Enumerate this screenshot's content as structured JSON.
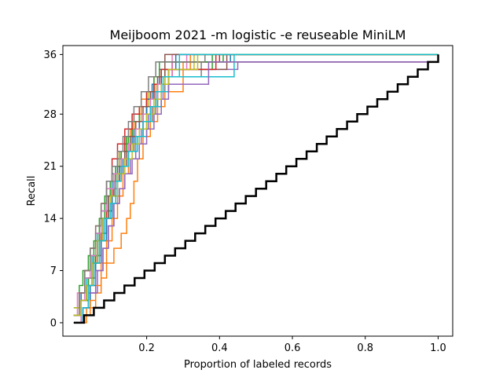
{
  "chart_data": {
    "type": "line",
    "title": "Meijboom 2021 -m logistic -e reuseable MiniLM",
    "xlabel": "Proportion of labeled records",
    "ylabel": "Recall",
    "xlim": [
      -0.03,
      1.04
    ],
    "ylim": [
      -1.8,
      37.2
    ],
    "x_ticks": [
      {
        "value": 0.2,
        "label": "0.2"
      },
      {
        "value": 0.4,
        "label": "0.4"
      },
      {
        "value": 0.6,
        "label": "0.6"
      },
      {
        "value": 0.8,
        "label": "0.8"
      },
      {
        "value": 1.0,
        "label": "1.0"
      }
    ],
    "y_ticks": [
      {
        "value": 0,
        "label": "0"
      },
      {
        "value": 7,
        "label": "7"
      },
      {
        "value": 14,
        "label": "14"
      },
      {
        "value": 21,
        "label": "21"
      },
      {
        "value": 28,
        "label": "28"
      },
      {
        "value": 36,
        "label": "36"
      }
    ],
    "grid": false,
    "total_relevant": 36,
    "random_baseline": {
      "color": "#000000",
      "x": [
        0.0,
        0.028,
        0.055,
        0.083,
        0.111,
        0.139,
        0.167,
        0.194,
        0.222,
        0.25,
        0.278,
        0.306,
        0.333,
        0.361,
        0.389,
        0.417,
        0.444,
        0.472,
        0.5,
        0.528,
        0.556,
        0.583,
        0.611,
        0.639,
        0.667,
        0.694,
        0.722,
        0.75,
        0.778,
        0.806,
        0.833,
        0.861,
        0.889,
        0.917,
        0.944,
        0.972,
        1.0
      ],
      "y": [
        0,
        1,
        2,
        3,
        4,
        5,
        6,
        7,
        8,
        9,
        10,
        11,
        12,
        13,
        14,
        15,
        16,
        17,
        18,
        19,
        20,
        21,
        22,
        23,
        24,
        25,
        26,
        27,
        28,
        29,
        30,
        31,
        32,
        33,
        34,
        35,
        36
      ]
    },
    "series": [
      {
        "color": "#1f77b4",
        "x": [
          0.0,
          0.02,
          0.03,
          0.045,
          0.06,
          0.075,
          0.09,
          0.105,
          0.12,
          0.14,
          0.16,
          0.18,
          0.2,
          0.22,
          0.25,
          0.27,
          0.43,
          1.0
        ],
        "y": [
          1,
          4,
          7,
          10,
          12,
          15,
          18,
          20,
          22,
          24,
          26,
          28,
          30,
          32,
          34,
          35,
          36,
          36
        ]
      },
      {
        "color": "#ff7f0e",
        "x": [
          0.0,
          0.035,
          0.06,
          0.075,
          0.09,
          0.11,
          0.13,
          0.145,
          0.155,
          0.165,
          0.175,
          0.19,
          0.21,
          0.23,
          0.25,
          0.3,
          1.0
        ],
        "y": [
          0,
          2,
          4,
          6,
          8,
          10,
          12,
          14,
          16,
          19,
          22,
          25,
          27,
          29,
          31,
          35,
          36
        ]
      },
      {
        "color": "#2ca02c",
        "x": [
          0.0,
          0.015,
          0.025,
          0.04,
          0.055,
          0.07,
          0.085,
          0.1,
          0.115,
          0.13,
          0.15,
          0.17,
          0.2,
          0.23,
          0.26,
          0.38,
          1.0
        ],
        "y": [
          2,
          5,
          7,
          9,
          11,
          14,
          17,
          19,
          21,
          23,
          25,
          27,
          29,
          31,
          34,
          36,
          36
        ]
      },
      {
        "color": "#d62728",
        "x": [
          0.0,
          0.02,
          0.04,
          0.06,
          0.075,
          0.09,
          0.105,
          0.115,
          0.125,
          0.14,
          0.16,
          0.18,
          0.2,
          0.22,
          0.24,
          0.27,
          0.4,
          1.0
        ],
        "y": [
          1,
          3,
          6,
          9,
          12,
          15,
          18,
          21,
          23,
          25,
          26,
          28,
          30,
          32,
          33,
          35,
          36,
          36
        ]
      },
      {
        "color": "#9467bd",
        "x": [
          0.0,
          0.025,
          0.045,
          0.065,
          0.08,
          0.095,
          0.11,
          0.125,
          0.14,
          0.155,
          0.17,
          0.185,
          0.205,
          0.225,
          0.245,
          0.26,
          0.45,
          1.0
        ],
        "y": [
          0,
          2,
          4,
          7,
          10,
          13,
          16,
          18,
          20,
          22,
          24,
          26,
          28,
          30,
          32,
          34,
          35,
          36
        ]
      },
      {
        "color": "#8c564b",
        "x": [
          0.0,
          0.02,
          0.035,
          0.05,
          0.065,
          0.08,
          0.095,
          0.11,
          0.125,
          0.145,
          0.165,
          0.19,
          0.215,
          0.24,
          0.26,
          0.42,
          1.0
        ],
        "y": [
          1,
          3,
          5,
          8,
          11,
          14,
          17,
          19,
          21,
          23,
          25,
          27,
          29,
          31,
          34,
          36,
          36
        ]
      },
      {
        "color": "#e377c2",
        "x": [
          0.0,
          0.01,
          0.03,
          0.05,
          0.07,
          0.085,
          0.1,
          0.12,
          0.135,
          0.15,
          0.17,
          0.19,
          0.21,
          0.23,
          0.25,
          0.27,
          1.0
        ],
        "y": [
          1,
          4,
          6,
          9,
          12,
          15,
          18,
          20,
          22,
          24,
          26,
          28,
          30,
          32,
          33,
          36,
          36
        ]
      },
      {
        "color": "#7f7f7f",
        "x": [
          0.0,
          0.02,
          0.04,
          0.055,
          0.07,
          0.085,
          0.1,
          0.115,
          0.13,
          0.15,
          0.17,
          0.19,
          0.21,
          0.23,
          0.25,
          0.35,
          1.0
        ],
        "y": [
          0,
          3,
          6,
          9,
          12,
          15,
          17,
          19,
          21,
          23,
          25,
          27,
          29,
          31,
          33,
          35,
          36
        ]
      },
      {
        "color": "#bcbd22",
        "x": [
          0.0,
          0.015,
          0.03,
          0.045,
          0.06,
          0.075,
          0.09,
          0.105,
          0.125,
          0.145,
          0.165,
          0.185,
          0.205,
          0.225,
          0.25,
          0.33,
          1.0
        ],
        "y": [
          2,
          4,
          7,
          10,
          13,
          16,
          19,
          21,
          23,
          25,
          27,
          29,
          31,
          32,
          34,
          36,
          36
        ]
      },
      {
        "color": "#17becf",
        "x": [
          0.0,
          0.02,
          0.035,
          0.05,
          0.065,
          0.08,
          0.095,
          0.11,
          0.13,
          0.15,
          0.175,
          0.2,
          0.22,
          0.24,
          0.26,
          0.44,
          1.0
        ],
        "y": [
          1,
          3,
          6,
          9,
          12,
          14,
          17,
          19,
          21,
          23,
          25,
          27,
          29,
          31,
          33,
          36,
          36
        ]
      },
      {
        "color": "#1f77b4",
        "x": [
          0.0,
          0.025,
          0.045,
          0.06,
          0.075,
          0.09,
          0.105,
          0.12,
          0.135,
          0.15,
          0.165,
          0.18,
          0.2,
          0.215,
          0.235,
          0.28,
          1.0
        ],
        "y": [
          0,
          2,
          5,
          8,
          11,
          14,
          17,
          20,
          22,
          24,
          26,
          28,
          30,
          32,
          34,
          36,
          36
        ]
      },
      {
        "color": "#ff7f0e",
        "x": [
          0.0,
          0.03,
          0.045,
          0.06,
          0.075,
          0.09,
          0.105,
          0.12,
          0.135,
          0.15,
          0.155,
          0.165,
          0.185,
          0.2,
          0.22,
          0.24,
          0.32,
          1.0
        ],
        "y": [
          0,
          1,
          3,
          5,
          8,
          11,
          14,
          17,
          20,
          23,
          26,
          28,
          30,
          31,
          33,
          34,
          36,
          36
        ]
      },
      {
        "color": "#2ca02c",
        "x": [
          0.0,
          0.02,
          0.04,
          0.055,
          0.07,
          0.085,
          0.1,
          0.115,
          0.13,
          0.145,
          0.16,
          0.18,
          0.2,
          0.22,
          0.235,
          0.41,
          1.0
        ],
        "y": [
          1,
          3,
          6,
          9,
          12,
          15,
          18,
          21,
          23,
          25,
          27,
          29,
          31,
          33,
          35,
          36,
          36
        ]
      },
      {
        "color": "#d62728",
        "x": [
          0.0,
          0.015,
          0.03,
          0.045,
          0.06,
          0.075,
          0.09,
          0.105,
          0.12,
          0.14,
          0.16,
          0.18,
          0.2,
          0.22,
          0.24,
          0.39,
          1.0
        ],
        "y": [
          1,
          4,
          7,
          10,
          13,
          16,
          19,
          22,
          24,
          26,
          28,
          29,
          31,
          32,
          34,
          36,
          36
        ]
      },
      {
        "color": "#9467bd",
        "x": [
          0.0,
          0.025,
          0.04,
          0.06,
          0.08,
          0.095,
          0.11,
          0.125,
          0.14,
          0.16,
          0.18,
          0.2,
          0.22,
          0.24,
          0.26,
          0.37,
          1.0
        ],
        "y": [
          0,
          2,
          4,
          7,
          10,
          13,
          16,
          18,
          20,
          22,
          24,
          26,
          28,
          30,
          32,
          35,
          36
        ]
      },
      {
        "color": "#8c564b",
        "x": [
          0.0,
          0.02,
          0.035,
          0.05,
          0.065,
          0.08,
          0.095,
          0.11,
          0.125,
          0.14,
          0.155,
          0.17,
          0.19,
          0.21,
          0.23,
          0.25,
          1.0
        ],
        "y": [
          1,
          3,
          5,
          8,
          11,
          14,
          17,
          19,
          21,
          23,
          25,
          27,
          29,
          31,
          33,
          36,
          36
        ]
      },
      {
        "color": "#e377c2",
        "x": [
          0.0,
          0.02,
          0.03,
          0.045,
          0.06,
          0.075,
          0.09,
          0.11,
          0.13,
          0.15,
          0.17,
          0.19,
          0.21,
          0.23,
          0.26,
          0.31,
          1.0
        ],
        "y": [
          0,
          3,
          6,
          9,
          12,
          15,
          18,
          20,
          22,
          24,
          26,
          28,
          30,
          32,
          34,
          36,
          36
        ]
      },
      {
        "color": "#7f7f7f",
        "x": [
          0.0,
          0.015,
          0.03,
          0.045,
          0.06,
          0.075,
          0.09,
          0.105,
          0.12,
          0.135,
          0.15,
          0.165,
          0.185,
          0.205,
          0.225,
          0.36,
          1.0
        ],
        "y": [
          1,
          4,
          7,
          10,
          13,
          16,
          19,
          21,
          23,
          25,
          27,
          29,
          31,
          33,
          35,
          36,
          36
        ]
      },
      {
        "color": "#bcbd22",
        "x": [
          0.0,
          0.02,
          0.035,
          0.05,
          0.065,
          0.08,
          0.1,
          0.12,
          0.14,
          0.16,
          0.18,
          0.2,
          0.22,
          0.24,
          0.26,
          0.34,
          1.0
        ],
        "y": [
          1,
          3,
          5,
          8,
          11,
          14,
          17,
          20,
          22,
          24,
          26,
          28,
          30,
          32,
          34,
          36,
          36
        ]
      },
      {
        "color": "#17becf",
        "x": [
          0.0,
          0.025,
          0.04,
          0.055,
          0.07,
          0.085,
          0.1,
          0.115,
          0.13,
          0.15,
          0.17,
          0.19,
          0.21,
          0.225,
          0.245,
          0.29,
          1.0
        ],
        "y": [
          0,
          2,
          5,
          8,
          11,
          14,
          16,
          19,
          21,
          23,
          25,
          27,
          29,
          31,
          33,
          36,
          36
        ]
      }
    ]
  }
}
